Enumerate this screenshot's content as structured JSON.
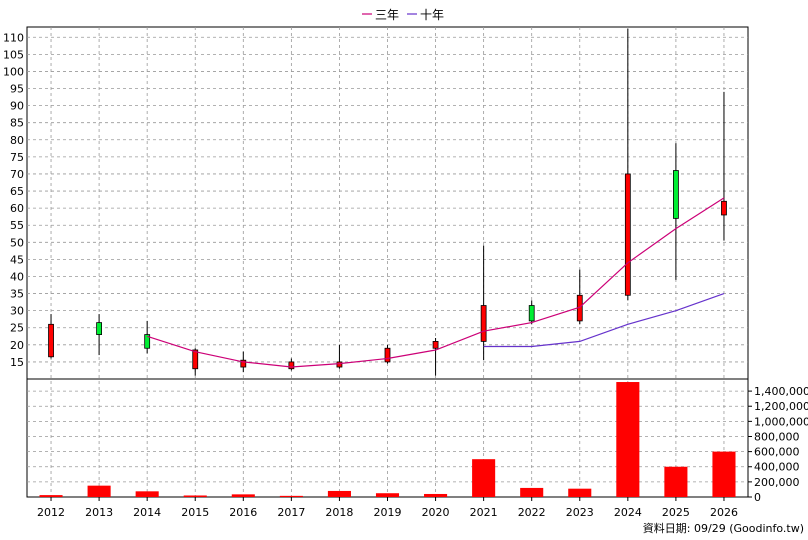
{
  "legend": [
    {
      "label": "三年",
      "color": "#cc0077"
    },
    {
      "label": "十年",
      "color": "#6633cc"
    }
  ],
  "footer": {
    "text": "資料日期: 09/29  (Goodinfo.tw)"
  },
  "chart_data": {
    "type": "candlestick+bar",
    "categories": [
      "2012",
      "2013",
      "2014",
      "2015",
      "2016",
      "2017",
      "2018",
      "2019",
      "2020",
      "2021",
      "2022",
      "2023",
      "2024",
      "2025",
      "2026"
    ],
    "price_axis": {
      "ylim": [
        10,
        113
      ],
      "ticks": [
        15,
        20,
        25,
        30,
        35,
        40,
        45,
        50,
        55,
        60,
        65,
        70,
        75,
        80,
        85,
        90,
        95,
        100,
        105,
        110
      ]
    },
    "volume_axis": {
      "ylim": [
        0,
        1560000
      ],
      "ticks": [
        0,
        200000,
        400000,
        600000,
        800000,
        1000000,
        1200000,
        1400000
      ],
      "tick_labels": [
        "0",
        "200,000",
        "400,000",
        "600,000",
        "800,000",
        "1,000,000",
        "1,200,000",
        "1,400,000"
      ]
    },
    "candles": [
      {
        "open": 26,
        "close": 16.5,
        "high": 29,
        "low": 16
      },
      {
        "open": 23,
        "close": 26.5,
        "high": 29,
        "low": 17
      },
      {
        "open": 19,
        "close": 23,
        "high": 27,
        "low": 17.5
      },
      {
        "open": 18.5,
        "close": 13,
        "high": 19,
        "low": 11
      },
      {
        "open": 15.5,
        "close": 13.5,
        "high": 18,
        "low": 12
      },
      {
        "open": 15,
        "close": 13,
        "high": 16,
        "low": 12.5
      },
      {
        "open": 15,
        "close": 13.5,
        "high": 20,
        "low": 13
      },
      {
        "open": 19,
        "close": 15,
        "high": 20,
        "low": 14.5
      },
      {
        "open": 21,
        "close": 19,
        "high": 22,
        "low": 11
      },
      {
        "open": 31.5,
        "close": 21,
        "high": 49,
        "low": 15.5
      },
      {
        "open": 27,
        "close": 31.5,
        "high": 33,
        "low": 26
      },
      {
        "open": 34.5,
        "close": 27,
        "high": 42,
        "low": 26
      },
      {
        "open": 70,
        "close": 34.5,
        "high": 112.5,
        "low": 33
      },
      {
        "open": 57,
        "close": 71,
        "high": 79,
        "low": 39
      },
      {
        "open": 62,
        "close": 58,
        "high": 94,
        "low": 50.5
      }
    ],
    "series": [
      {
        "name": "三年",
        "values": [
          null,
          null,
          22.5,
          18,
          15,
          13.5,
          14.5,
          16,
          18.5,
          24,
          26.5,
          31,
          44,
          54,
          63
        ]
      },
      {
        "name": "十年",
        "values": [
          null,
          null,
          null,
          null,
          null,
          null,
          null,
          null,
          null,
          19.5,
          19.5,
          21,
          26,
          30,
          35
        ]
      }
    ],
    "volume": [
      25000,
      150000,
      75000,
      20000,
      35000,
      15000,
      80000,
      50000,
      40000,
      500000,
      120000,
      110000,
      1520000,
      400000,
      600000
    ],
    "colors": {
      "up": "#00ee33",
      "down": "#ff0000",
      "volume": "#ff0000",
      "grid": "#999999"
    }
  }
}
